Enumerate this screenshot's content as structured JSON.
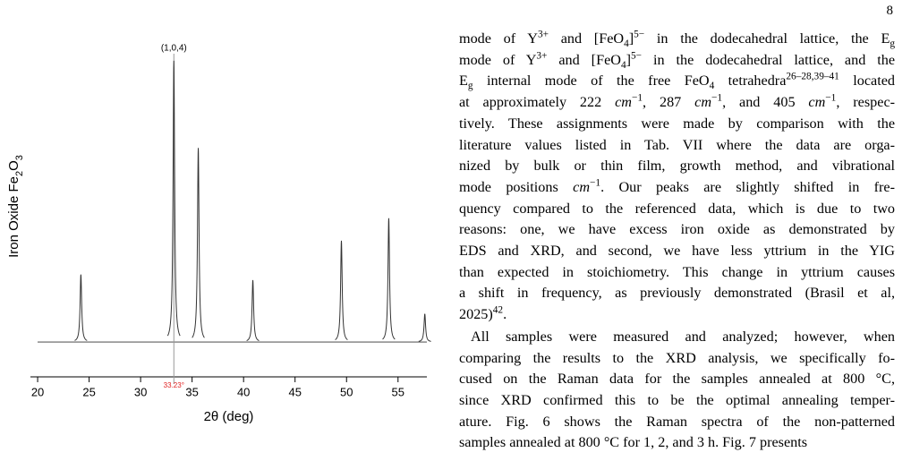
{
  "page_number": "8",
  "chart_data": {
    "type": "spectrum",
    "ylabel": "Iron Oxide Fe2O3",
    "xlabel": "2θ (deg)",
    "xlim": [
      19.3,
      57.8
    ],
    "xticks": [
      20,
      25,
      30,
      35,
      40,
      45,
      50,
      55
    ],
    "ylim": [
      -12.4,
      102.5
    ],
    "x": [
      24.2,
      33.23,
      35.6,
      40.9,
      49.5,
      54.1,
      57.6
    ],
    "values": [
      24,
      100,
      69,
      22,
      36,
      44,
      10
    ],
    "color": "#333333",
    "marker": {
      "value": 33.23,
      "label": "33.23°",
      "annotation": "(1,0,4)"
    }
  },
  "body": {
    "paragraphs": [
      [
        [
          "mode of Y",
          "3+",
          " and [FeO",
          "4",
          "]",
          "5−",
          " in the dodecahedral lattice, the E",
          "g"
        ],
        [
          "mode of Y",
          "3+",
          " and [FeO",
          "4",
          "]",
          "5−",
          " in the dodecahedral lattice, and the"
        ],
        [
          "E",
          "g",
          " internal mode of the free FeO",
          "4",
          " tetrahedra",
          "26–28,39–41",
          " located"
        ],
        [
          "at approximately 222 ",
          "cm",
          "−1",
          ", 287 ",
          "cm",
          "−1",
          ", and 405 ",
          "cm",
          "−1",
          ", respec-"
        ],
        [
          "tively. These assignments were made by comparison with the"
        ],
        [
          "literature values listed in Tab. VII where the data are orga-"
        ],
        [
          "nized by bulk or thin film, growth method, and vibrational"
        ],
        [
          "mode positions ",
          "cm",
          "−1",
          ".  Our peaks are slightly shifted in fre-"
        ],
        [
          "quency compared to the referenced data, which is due to two"
        ],
        [
          "reasons: one, we have excess iron oxide as demonstrated by"
        ],
        [
          "EDS and XRD, and second, we have less yttrium in the YIG"
        ],
        [
          "than expected in stoichiometry. This change in yttrium causes"
        ],
        [
          "a shift in frequency, as previously demonstrated (Brasil et al,"
        ],
        [
          "2025)",
          "42",
          "."
        ]
      ],
      [
        [
          "All samples were measured and analyzed; however, when"
        ],
        [
          "comparing the results to the XRD analysis, we specifically fo-"
        ],
        [
          "cused on the Raman data for the samples annealed at 800 °C,"
        ],
        [
          "since XRD confirmed this to be the optimal annealing temper-"
        ],
        [
          "ature. Fig. 6 shows the Raman spectra of the non-patterned"
        ],
        [
          "samples annealed at 800 °C for 1, 2, and 3 h. Fig. 7 presents"
        ]
      ]
    ]
  }
}
